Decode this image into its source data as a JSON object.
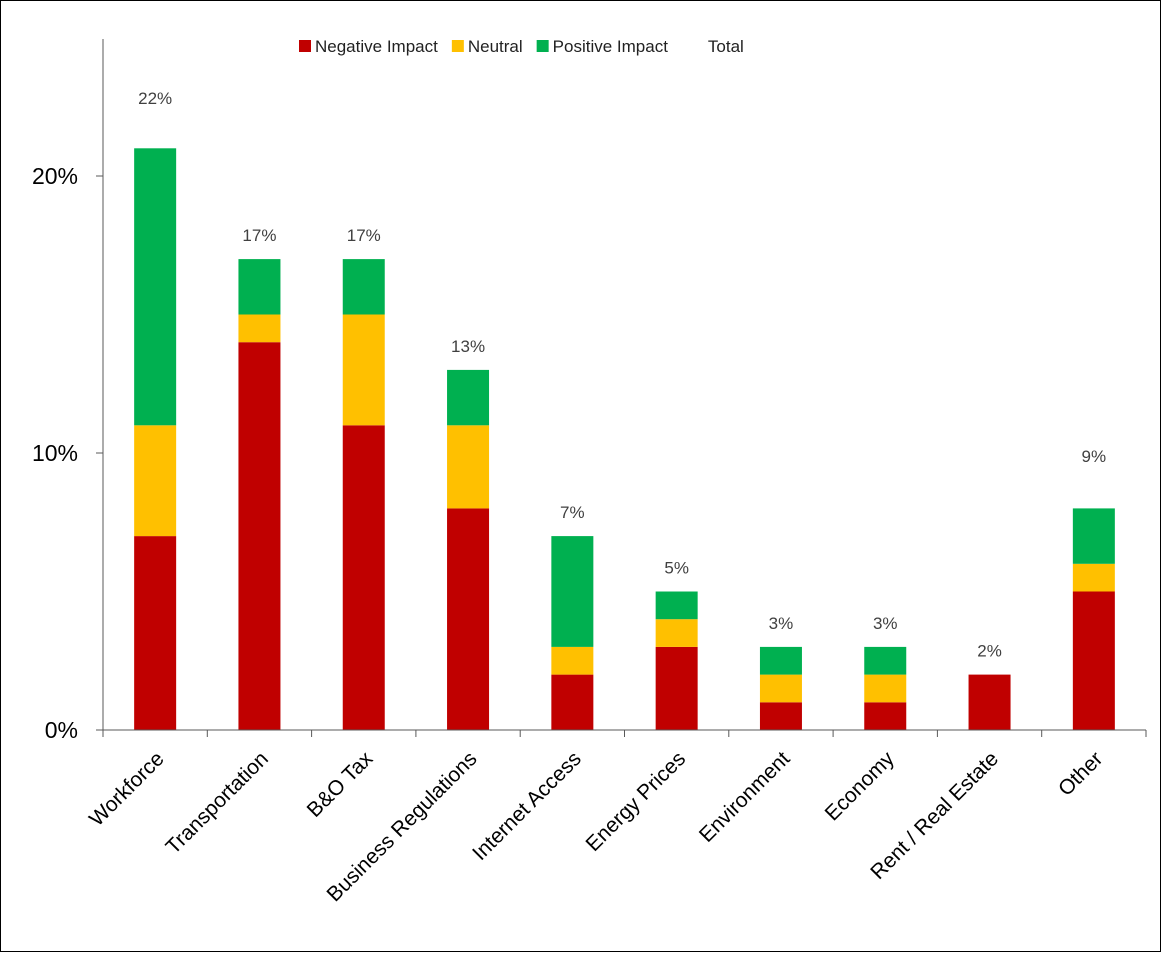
{
  "chart_data": {
    "type": "bar",
    "stacked": true,
    "categories": [
      "Workforce",
      "Transportation",
      "B&O Tax",
      "Business Regulations",
      "Internet Access",
      "Energy Prices",
      "Environment",
      "Economy",
      "Rent / Real Estate",
      "Other"
    ],
    "series": [
      {
        "name": "Negative Impact",
        "color": "#c00000",
        "values": [
          7,
          14,
          11,
          8,
          2,
          3,
          1,
          1,
          2,
          5
        ]
      },
      {
        "name": "Neutral",
        "color": "#ffc000",
        "values": [
          4,
          1,
          4,
          3,
          1,
          1,
          1,
          1,
          0,
          1
        ]
      },
      {
        "name": "Positive Impact",
        "color": "#00b050",
        "values": [
          10,
          2,
          2,
          2,
          4,
          1,
          1,
          1,
          0,
          2
        ]
      }
    ],
    "totals": {
      "name": "Total",
      "labels": [
        "22%",
        "17%",
        "17%",
        "13%",
        "7%",
        "5%",
        "3%",
        "3%",
        "2%",
        "9%"
      ]
    },
    "yticks": [
      0,
      10,
      20
    ],
    "ytick_labels": [
      "0%",
      "10%",
      "20%"
    ],
    "ylim": [
      0,
      20.8
    ],
    "legend_position": "top-center",
    "title": "",
    "xlabel": "",
    "ylabel": ""
  }
}
